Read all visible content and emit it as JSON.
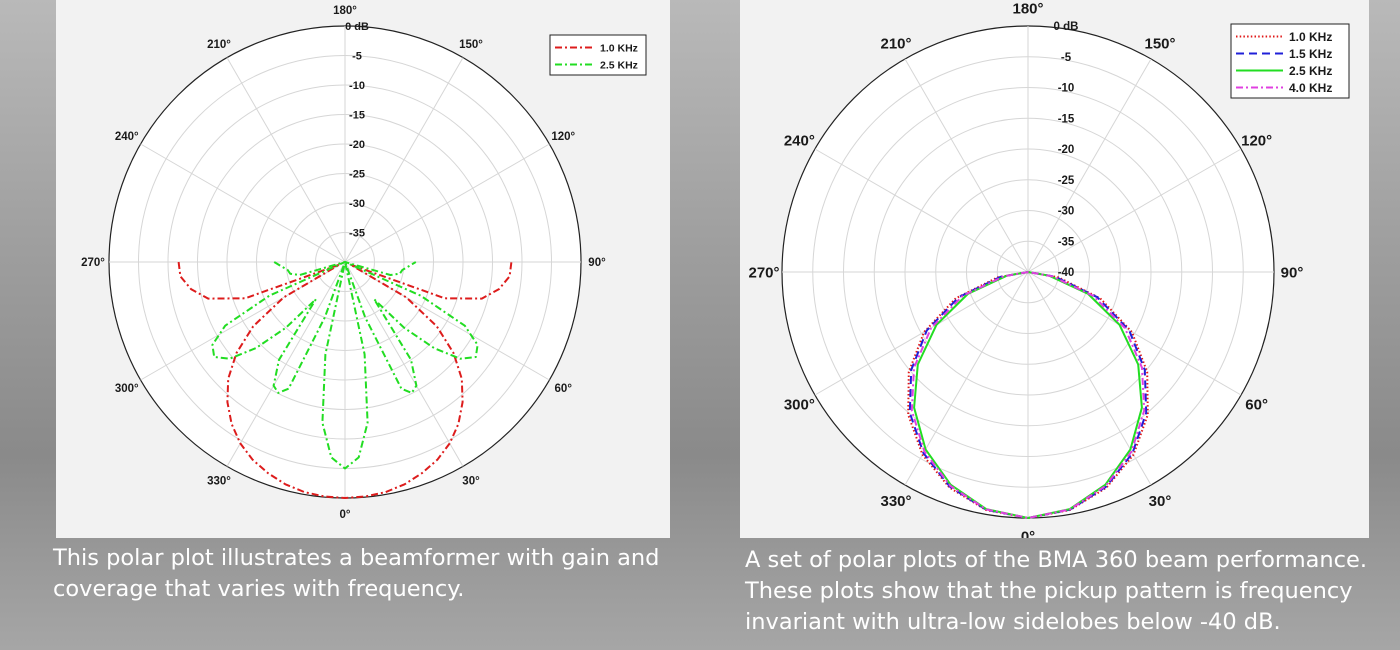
{
  "captions": {
    "left": "This polar plot illustrates a beamformer with gain and coverage that varies with frequency.",
    "right": "A set of polar plots of the BMA 360 beam performance. These plots show that the pickup pattern is frequency invariant with ultra-low sidelobes below -40 dB."
  },
  "chart_data": [
    {
      "type": "polar",
      "title": "",
      "r_unit": "dB",
      "r_range": [
        -40,
        0
      ],
      "r_ticks": [
        "0 dB",
        "-5",
        "-10",
        "-15",
        "-20",
        "-25",
        "-30",
        "-35"
      ],
      "angle_ticks": [
        "0°",
        "30°",
        "60°",
        "90°",
        "120°",
        "150°",
        "180°",
        "210°",
        "240°",
        "270°",
        "300°",
        "330°"
      ],
      "grid": true,
      "legend": "top-right",
      "series": [
        {
          "name": "1.0 KHz",
          "color": "#dd1c1c",
          "style": "dash-dot",
          "angles_deg": [
            0,
            5,
            10,
            15,
            20,
            25,
            30,
            35,
            40,
            45,
            50,
            55,
            60,
            65,
            70,
            75,
            80,
            85,
            90
          ],
          "values_db": [
            0,
            -0.1,
            -0.4,
            -1,
            -1.9,
            -3,
            -4.5,
            -6.5,
            -9,
            -12,
            -16,
            -21,
            -28,
            -39,
            -22,
            -16,
            -13.5,
            -12,
            -11.8
          ],
          "symmetric": true
        },
        {
          "name": "2.5 KHz",
          "color": "#22dd22",
          "style": "dash-dot",
          "angles_deg": [
            0,
            4,
            8,
            12,
            16,
            20,
            24,
            27,
            30,
            34,
            38,
            42,
            46,
            50,
            54,
            58,
            62,
            66,
            70,
            74,
            78,
            82,
            86,
            90
          ],
          "values_db": [
            -5,
            -6.8,
            -12.5,
            -24,
            -40,
            -30,
            -16.5,
            -15.1,
            -15.8,
            -20,
            -32,
            -25,
            -19,
            -14.5,
            -12.6,
            -13.5,
            -17,
            -26,
            -40,
            -32,
            -30.5,
            -30.2,
            -29.2,
            -28
          ],
          "symmetric": true
        }
      ]
    },
    {
      "type": "polar",
      "title": "",
      "r_unit": "dB",
      "r_range": [
        -40,
        0
      ],
      "r_ticks": [
        "0 dB",
        "-5",
        "-10",
        "-15",
        "-20",
        "-25",
        "-30",
        "-35",
        "-40"
      ],
      "angle_ticks": [
        "0°",
        "30°",
        "60°",
        "90°",
        "120°",
        "150°",
        "180°",
        "210°",
        "240°",
        "270°",
        "300°",
        "330°"
      ],
      "grid": true,
      "legend": "top-right",
      "series": [
        {
          "name": "1.0 KHz",
          "color": "#e01818",
          "style": "dotted",
          "angles_deg": [
            0,
            10,
            20,
            30,
            40,
            50,
            60,
            70,
            80,
            90
          ],
          "values_db": [
            0,
            -0.7,
            -2.7,
            -5.7,
            -9.7,
            -14.7,
            -20.5,
            -27.5,
            -35,
            -40
          ],
          "symmetric": true
        },
        {
          "name": "1.5 KHz",
          "color": "#2020d8",
          "style": "dashed",
          "angles_deg": [
            0,
            10,
            20,
            30,
            40,
            50,
            60,
            70,
            80,
            90
          ],
          "values_db": [
            0,
            -0.75,
            -2.85,
            -6,
            -10.1,
            -15.2,
            -21,
            -28,
            -35.5,
            -40
          ],
          "symmetric": true
        },
        {
          "name": "2.5 KHz",
          "color": "#22dd22",
          "style": "solid",
          "angles_deg": [
            0,
            10,
            20,
            30,
            40,
            50,
            60,
            70,
            80,
            90
          ],
          "values_db": [
            0,
            -0.85,
            -3.2,
            -6.7,
            -11.2,
            -16.6,
            -22.8,
            -29.6,
            -36.5,
            -40
          ],
          "symmetric": true
        },
        {
          "name": "4.0 KHz",
          "color": "#e040e0",
          "style": "dash-dot",
          "angles_deg": [
            0,
            10,
            20,
            30,
            40,
            50,
            60,
            70,
            80,
            90
          ],
          "values_db": [
            0,
            -0.8,
            -3,
            -6.3,
            -10.6,
            -15.8,
            -21.8,
            -28.7,
            -36,
            -40
          ],
          "symmetric": true
        }
      ]
    }
  ]
}
